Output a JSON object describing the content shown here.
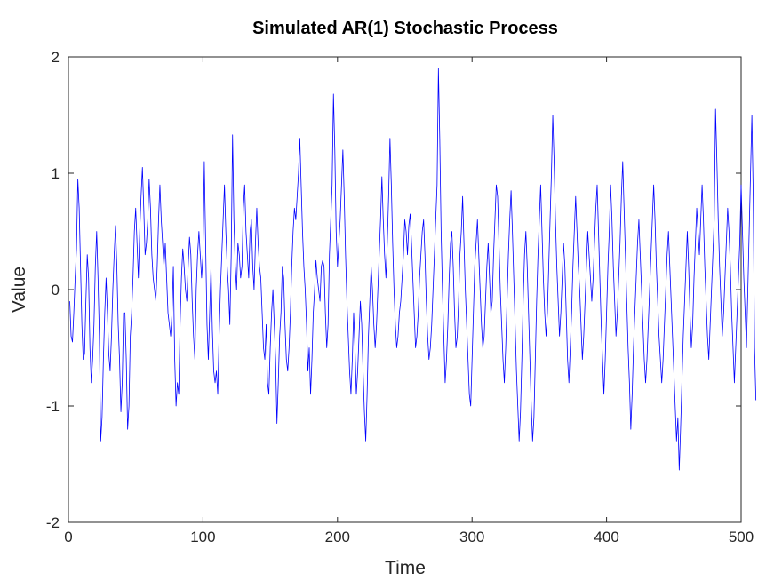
{
  "chart_data": {
    "type": "line",
    "title": "Simulated AR(1) Stochastic Process",
    "xlabel": "Time",
    "ylabel": "Value",
    "xlim": [
      0,
      500
    ],
    "ylim": [
      -2,
      2
    ],
    "x_ticks": [
      0,
      100,
      200,
      300,
      400,
      500
    ],
    "y_ticks": [
      -2,
      -1,
      0,
      1,
      2
    ],
    "grid": false,
    "line_color": "#0000ff",
    "series": [
      {
        "x_start": 1,
        "x_step": 1,
        "values": [
          -0.1,
          -0.4,
          -0.45,
          -0.2,
          0.1,
          0.35,
          0.95,
          0.7,
          0.2,
          -0.3,
          -0.6,
          -0.55,
          -0.1,
          0.3,
          0.1,
          -0.5,
          -0.8,
          -0.6,
          -0.3,
          0.2,
          0.5,
          0.1,
          -0.4,
          -1.3,
          -1.1,
          -0.6,
          -0.2,
          0.1,
          -0.2,
          -0.55,
          -0.7,
          -0.4,
          0.0,
          0.3,
          0.55,
          0.2,
          -0.3,
          -0.6,
          -1.05,
          -0.8,
          -0.2,
          -0.2,
          -0.6,
          -1.2,
          -1.0,
          -0.4,
          -0.2,
          0.1,
          0.5,
          0.7,
          0.4,
          0.1,
          0.5,
          0.8,
          1.05,
          0.7,
          0.3,
          0.4,
          0.6,
          0.95,
          0.7,
          0.3,
          0.1,
          0.0,
          -0.1,
          0.2,
          0.6,
          0.9,
          0.6,
          0.4,
          0.2,
          0.4,
          0.1,
          -0.2,
          -0.3,
          -0.4,
          -0.2,
          0.2,
          -0.6,
          -1.0,
          -0.8,
          -0.9,
          -0.3,
          0.1,
          0.35,
          0.2,
          0.0,
          -0.1,
          0.2,
          0.45,
          0.3,
          -0.1,
          -0.4,
          -0.6,
          0.0,
          0.3,
          0.5,
          0.3,
          0.1,
          0.3,
          1.1,
          0.4,
          -0.3,
          -0.6,
          -0.2,
          0.2,
          -0.35,
          -0.7,
          -0.8,
          -0.7,
          -0.9,
          -0.4,
          0.0,
          0.3,
          0.6,
          0.9,
          0.5,
          0.2,
          0.0,
          -0.3,
          0.3,
          1.33,
          0.6,
          0.2,
          0.0,
          0.4,
          0.3,
          0.1,
          0.2,
          0.7,
          0.9,
          0.5,
          0.3,
          0.1,
          0.5,
          0.6,
          0.2,
          0.0,
          0.4,
          0.7,
          0.4,
          0.2,
          0.1,
          -0.2,
          -0.5,
          -0.6,
          -0.3,
          -0.8,
          -0.9,
          -0.5,
          -0.2,
          0.0,
          -0.3,
          -0.6,
          -1.15,
          -0.8,
          -0.4,
          -0.2,
          0.2,
          0.1,
          -0.3,
          -0.6,
          -0.7,
          -0.5,
          -0.2,
          0.2,
          0.5,
          0.7,
          0.6,
          0.8,
          1.0,
          1.3,
          0.9,
          0.5,
          0.2,
          0.0,
          -0.3,
          -0.7,
          -0.5,
          -0.9,
          -0.6,
          -0.2,
          0.0,
          0.25,
          0.1,
          0.0,
          -0.1,
          0.2,
          0.25,
          0.2,
          -0.2,
          -0.5,
          -0.3,
          0.3,
          0.6,
          0.9,
          1.68,
          1.2,
          0.5,
          0.2,
          0.4,
          0.6,
          0.9,
          1.2,
          0.8,
          0.3,
          -0.1,
          -0.4,
          -0.7,
          -0.9,
          -0.6,
          -0.2,
          -0.5,
          -0.9,
          -0.7,
          -0.4,
          -0.1,
          -0.3,
          -0.7,
          -1.05,
          -1.3,
          -0.9,
          -0.4,
          -0.1,
          0.2,
          0.0,
          -0.3,
          -0.5,
          -0.3,
          0.0,
          0.3,
          0.6,
          0.97,
          0.6,
          0.3,
          0.1,
          0.4,
          0.8,
          1.3,
          0.9,
          0.4,
          0.0,
          -0.3,
          -0.5,
          -0.4,
          -0.2,
          -0.1,
          0.1,
          0.3,
          0.6,
          0.5,
          0.3,
          0.55,
          0.65,
          0.4,
          0.1,
          -0.2,
          -0.5,
          -0.4,
          -0.2,
          0.1,
          0.3,
          0.5,
          0.6,
          0.3,
          -0.1,
          -0.4,
          -0.6,
          -0.5,
          -0.3,
          0.0,
          0.3,
          0.6,
          0.9,
          1.9,
          1.3,
          0.5,
          0.0,
          -0.4,
          -0.8,
          -0.6,
          -0.3,
          0.1,
          0.4,
          0.5,
          0.2,
          -0.2,
          -0.5,
          -0.4,
          -0.1,
          0.3,
          0.5,
          0.8,
          0.4,
          0.0,
          -0.3,
          -0.6,
          -0.9,
          -1.0,
          -0.6,
          -0.2,
          0.2,
          0.4,
          0.6,
          0.3,
          0.0,
          -0.3,
          -0.5,
          -0.4,
          -0.1,
          0.2,
          0.4,
          0.1,
          -0.2,
          -0.1,
          0.3,
          0.6,
          0.9,
          0.8,
          0.4,
          0.0,
          -0.3,
          -0.6,
          -0.8,
          -0.5,
          -0.1,
          0.3,
          0.6,
          0.85,
          0.5,
          0.1,
          -0.3,
          -0.7,
          -1.0,
          -1.3,
          -1.05,
          -0.6,
          -0.1,
          0.3,
          0.5,
          0.2,
          -0.2,
          -0.6,
          -1.0,
          -1.3,
          -1.1,
          -0.6,
          -0.1,
          0.3,
          0.6,
          0.9,
          0.5,
          0.1,
          -0.2,
          -0.4,
          -0.2,
          0.2,
          0.6,
          1.0,
          1.5,
          1.1,
          0.6,
          0.2,
          -0.1,
          -0.4,
          -0.2,
          0.1,
          0.4,
          0.2,
          -0.2,
          -0.6,
          -0.8,
          -0.5,
          -0.2,
          0.2,
          0.5,
          0.8,
          0.5,
          0.2,
          0.0,
          -0.3,
          -0.6,
          -0.4,
          -0.1,
          0.2,
          0.5,
          0.3,
          0.1,
          -0.1,
          0.1,
          0.4,
          0.7,
          0.9,
          0.5,
          0.1,
          -0.3,
          -0.6,
          -0.9,
          -0.6,
          -0.2,
          0.2,
          0.5,
          0.9,
          0.6,
          0.2,
          -0.1,
          -0.4,
          -0.2,
          0.1,
          0.4,
          0.8,
          1.1,
          0.7,
          0.3,
          -0.1,
          -0.5,
          -0.8,
          -1.2,
          -0.9,
          -0.5,
          -0.2,
          0.1,
          0.4,
          0.6,
          0.3,
          0.0,
          -0.3,
          -0.6,
          -0.8,
          -0.6,
          -0.3,
          0.0,
          0.3,
          0.6,
          0.9,
          0.6,
          0.2,
          -0.1,
          -0.4,
          -0.6,
          -0.8,
          -0.6,
          -0.3,
          0.0,
          0.3,
          0.5,
          0.2,
          -0.1,
          -0.4,
          -0.7,
          -1.0,
          -1.3,
          -1.1,
          -1.55,
          -1.2,
          -0.8,
          -0.4,
          -0.1,
          0.2,
          0.5,
          0.2,
          -0.2,
          -0.5,
          -0.3,
          0.1,
          0.4,
          0.7,
          0.5,
          0.3,
          0.6,
          0.9,
          0.6,
          0.2,
          -0.1,
          -0.4,
          -0.6,
          -0.3,
          0.0,
          0.3,
          0.6,
          1.55,
          1.1,
          0.6,
          0.2,
          -0.1,
          -0.4,
          -0.2,
          0.1,
          0.4,
          0.7,
          0.5,
          0.2,
          -0.2,
          -0.5,
          -0.8,
          -0.5,
          -0.2,
          0.1,
          0.4,
          0.9,
          0.5,
          0.1,
          -0.2,
          -0.5,
          0.0,
          0.5,
          1.0,
          1.5,
          0.8,
          -0.5,
          -0.95
        ]
      }
    ]
  }
}
